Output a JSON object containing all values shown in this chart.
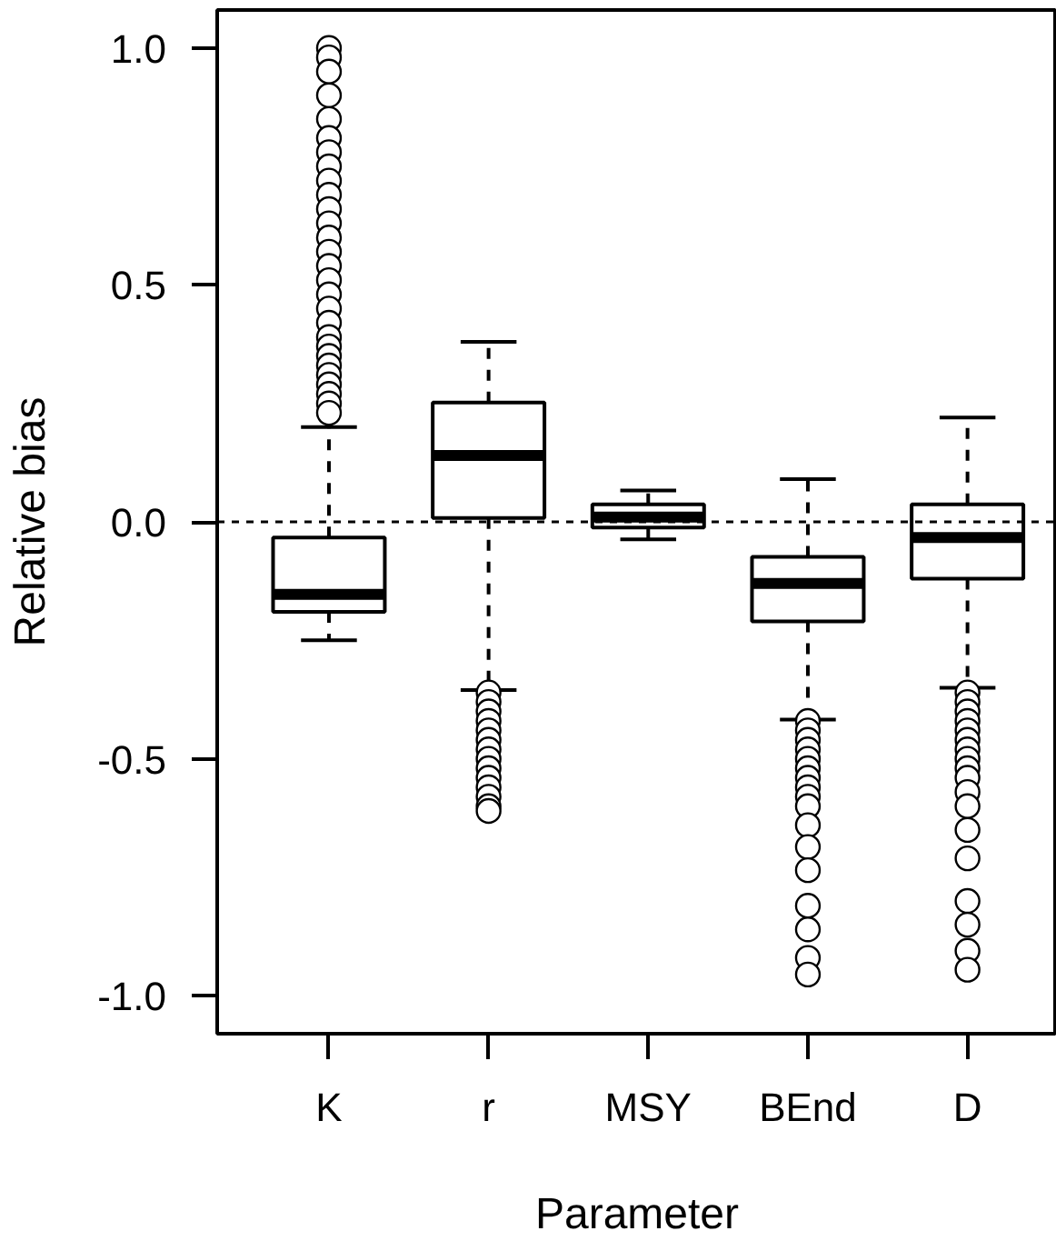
{
  "chart_data": {
    "type": "box",
    "xlabel": "Parameter",
    "ylabel": "Relative bias",
    "categories": [
      "K",
      "r",
      "MSY",
      "BEnd",
      "D"
    ],
    "ylim": [
      -1.08,
      1.08
    ],
    "yticks": [
      {
        "value": -1,
        "label": "-1.0"
      },
      {
        "value": -0.5,
        "label": "-0.5"
      },
      {
        "value": 0,
        "label": "0.0"
      },
      {
        "value": 0.5,
        "label": "0.5"
      },
      {
        "value": 1,
        "label": "1.0"
      }
    ],
    "grid": false,
    "boxes": [
      {
        "low": -0.25,
        "q1": -0.19,
        "median": -0.153,
        "q3": -0.033,
        "high": 0.2,
        "outliers": [
          1.0,
          0.98,
          0.95,
          0.9,
          0.85,
          0.81,
          0.78,
          0.75,
          0.72,
          0.69,
          0.66,
          0.63,
          0.6,
          0.57,
          0.54,
          0.51,
          0.48,
          0.45,
          0.42,
          0.39,
          0.37,
          0.35,
          0.33,
          0.31,
          0.29,
          0.27,
          0.25,
          0.23
        ]
      },
      {
        "low": -0.355,
        "q1": 0.008,
        "median": 0.14,
        "q3": 0.252,
        "high": 0.38,
        "outliers": [
          -0.36,
          -0.38,
          -0.4,
          -0.42,
          -0.44,
          -0.46,
          -0.48,
          -0.5,
          -0.52,
          -0.54,
          -0.56,
          -0.58,
          -0.6,
          -0.61
        ]
      },
      {
        "low": -0.037,
        "q1": -0.012,
        "median": 0.01,
        "q3": 0.037,
        "high": 0.066
      },
      {
        "low": -0.417,
        "q1": -0.21,
        "median": -0.13,
        "q3": -0.074,
        "high": 0.09,
        "outliers": [
          -0.42,
          -0.44,
          -0.46,
          -0.48,
          -0.5,
          -0.52,
          -0.54,
          -0.56,
          -0.58,
          -0.6,
          -0.64,
          -0.686,
          -0.735,
          -0.81,
          -0.86,
          -0.92,
          -0.955
        ]
      },
      {
        "low": -0.35,
        "q1": -0.12,
        "median": -0.033,
        "q3": 0.037,
        "high": 0.22,
        "outliers": [
          -0.36,
          -0.38,
          -0.4,
          -0.42,
          -0.44,
          -0.46,
          -0.48,
          -0.5,
          -0.52,
          -0.54,
          -0.57,
          -0.6,
          -0.65,
          -0.71,
          -0.8,
          -0.85,
          -0.905,
          -0.945
        ]
      }
    ],
    "ref_lines": [
      {
        "axis": "y",
        "value": 0,
        "line_style": "dashed",
        "color": "#000000"
      }
    ]
  }
}
